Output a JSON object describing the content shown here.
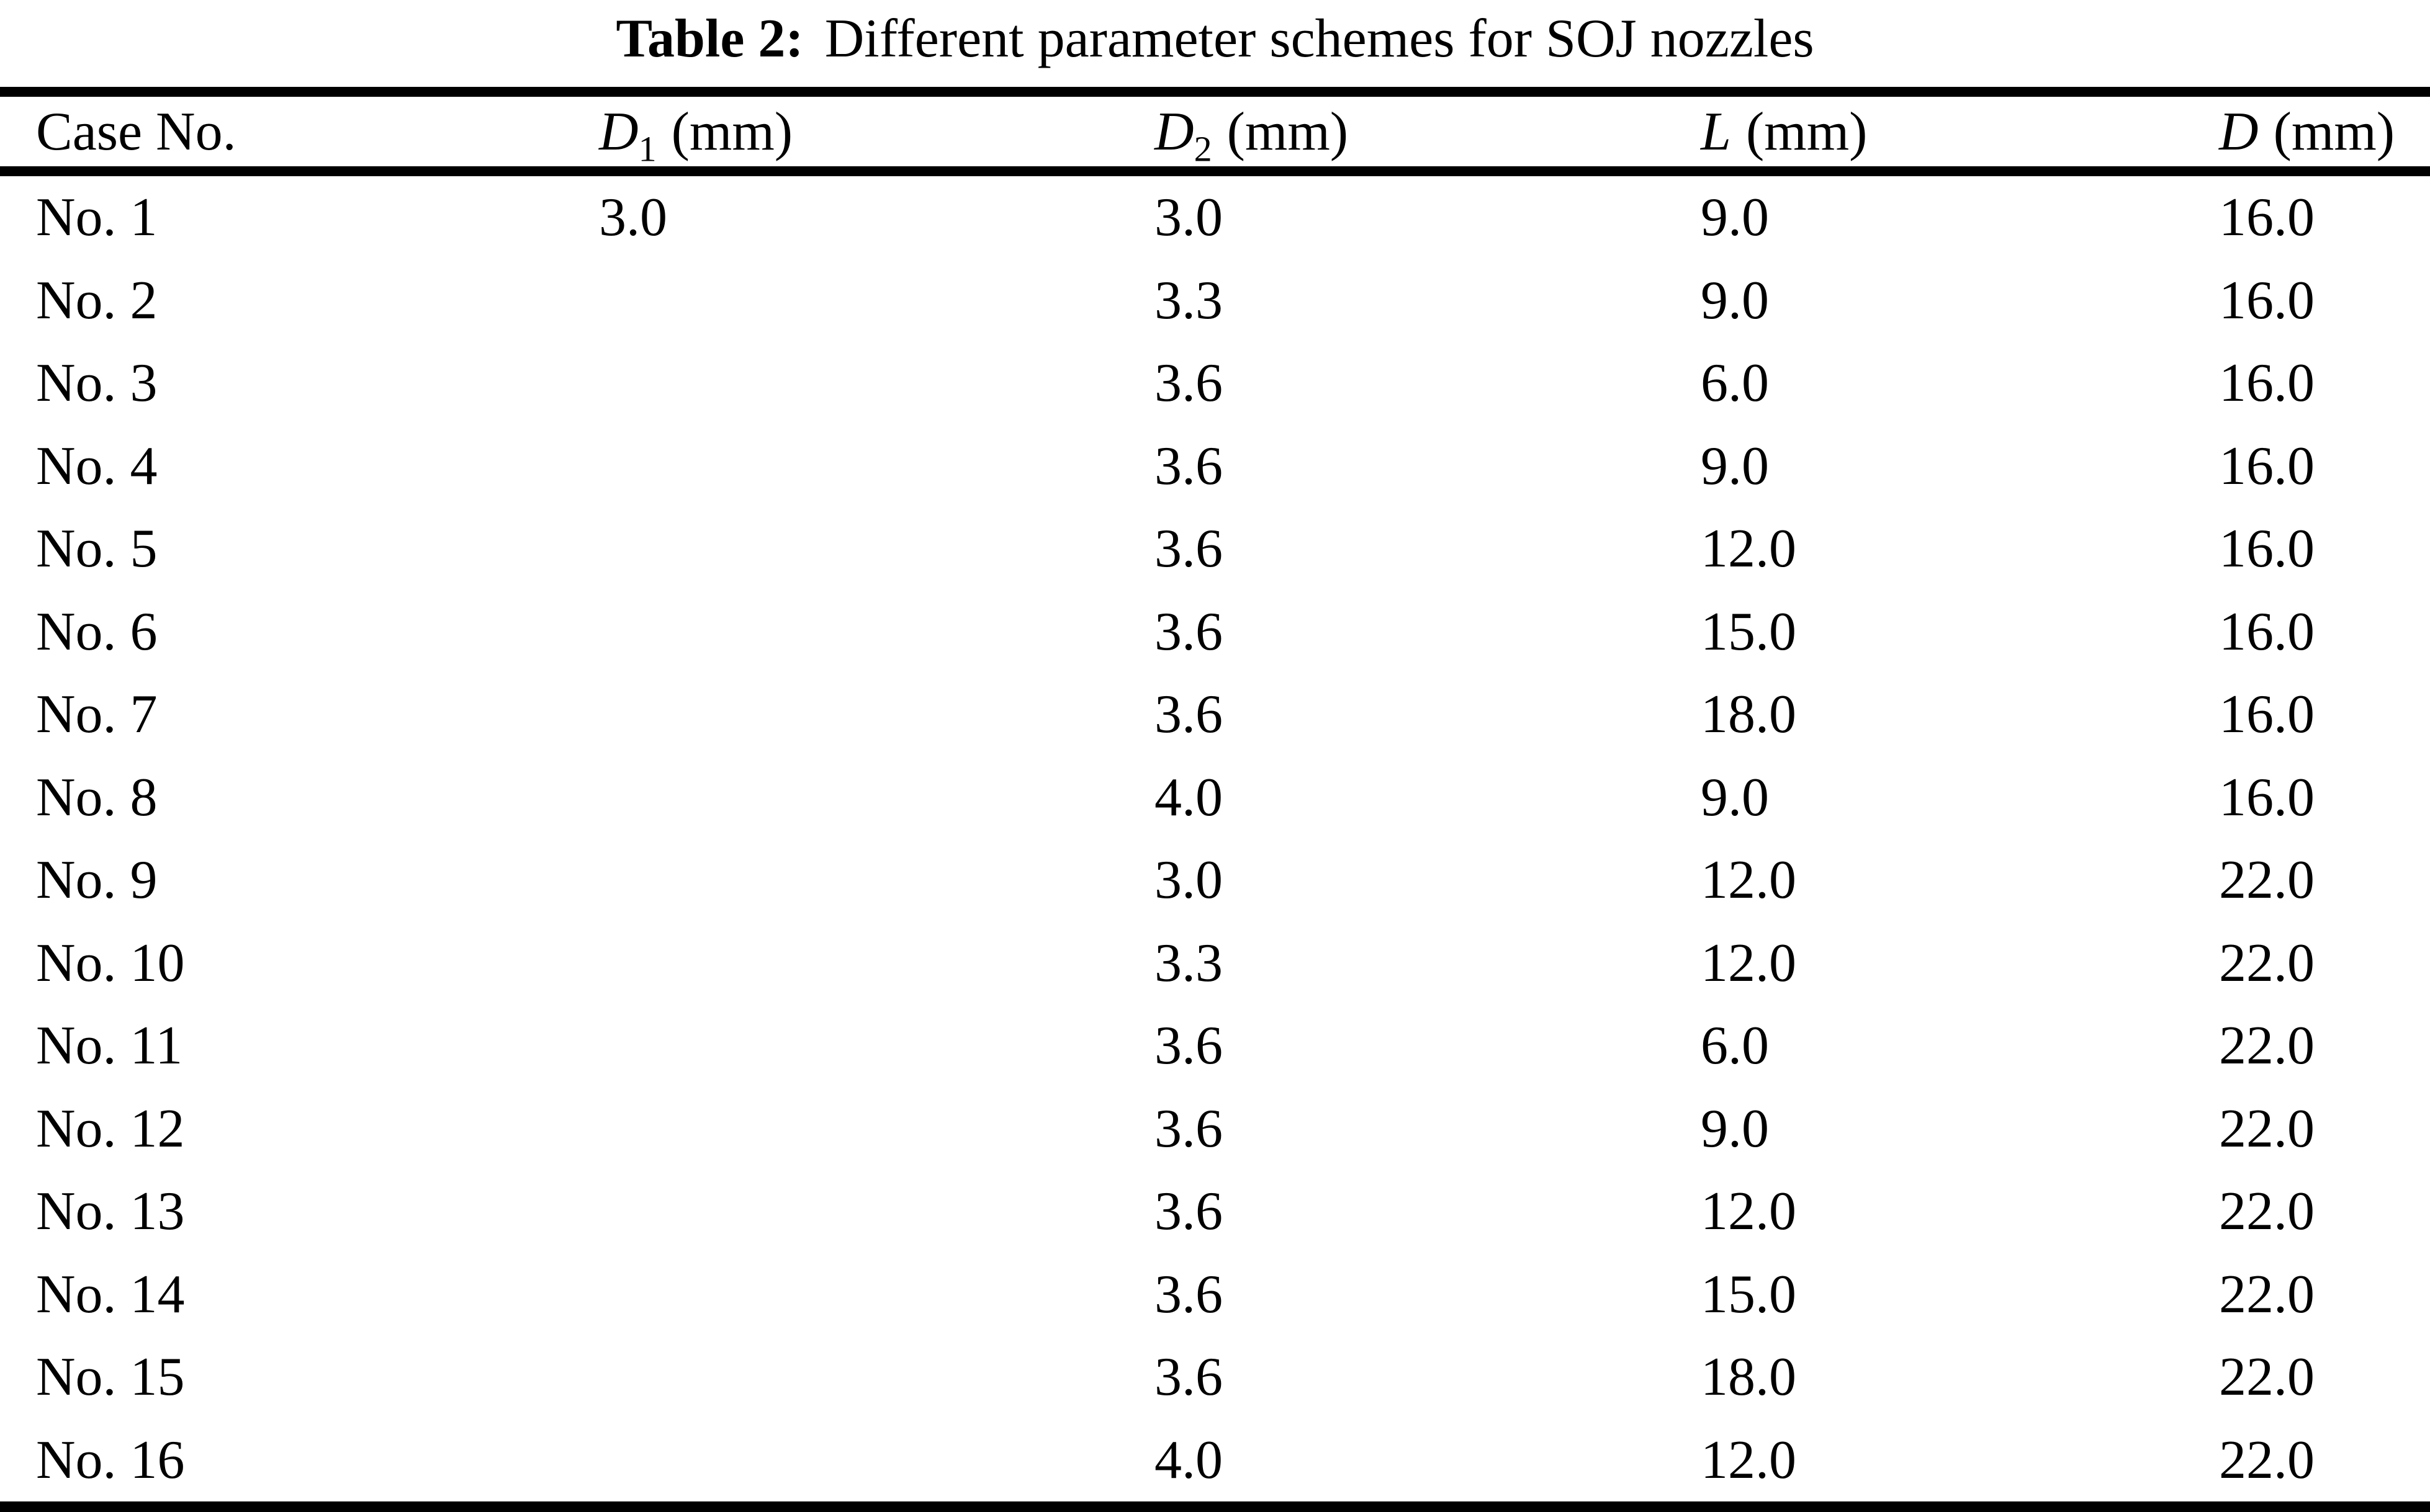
{
  "caption": {
    "label": "Table 2:",
    "text": "Different parameter schemes for SOJ nozzles"
  },
  "colors": {
    "text": "#000000",
    "background": "#ffffff",
    "rules": "#000000"
  },
  "table": {
    "columns": [
      {
        "key": "case",
        "label": "Case No.",
        "italic": false,
        "sub": "",
        "unit": ""
      },
      {
        "key": "d1",
        "label": "D",
        "italic": true,
        "sub": "1",
        "unit": "(mm)"
      },
      {
        "key": "d2",
        "label": "D",
        "italic": true,
        "sub": "2",
        "unit": "(mm)"
      },
      {
        "key": "l",
        "label": "L",
        "italic": true,
        "sub": "",
        "unit": "(mm)"
      },
      {
        "key": "d",
        "label": "D",
        "italic": true,
        "sub": "",
        "unit": "(mm)"
      }
    ],
    "rows": [
      {
        "case": "No. 1",
        "d1": "3.0",
        "d2": "3.0",
        "l": "9.0",
        "d": "16.0"
      },
      {
        "case": "No. 2",
        "d1": "",
        "d2": "3.3",
        "l": "9.0",
        "d": "16.0"
      },
      {
        "case": "No. 3",
        "d1": "",
        "d2": "3.6",
        "l": "6.0",
        "d": "16.0"
      },
      {
        "case": "No. 4",
        "d1": "",
        "d2": "3.6",
        "l": "9.0",
        "d": "16.0"
      },
      {
        "case": "No. 5",
        "d1": "",
        "d2": "3.6",
        "l": "12.0",
        "d": "16.0"
      },
      {
        "case": "No. 6",
        "d1": "",
        "d2": "3.6",
        "l": "15.0",
        "d": "16.0"
      },
      {
        "case": "No. 7",
        "d1": "",
        "d2": "3.6",
        "l": "18.0",
        "d": "16.0"
      },
      {
        "case": "No. 8",
        "d1": "",
        "d2": "4.0",
        "l": "9.0",
        "d": "16.0"
      },
      {
        "case": "No. 9",
        "d1": "",
        "d2": "3.0",
        "l": "12.0",
        "d": "22.0"
      },
      {
        "case": "No. 10",
        "d1": "",
        "d2": "3.3",
        "l": "12.0",
        "d": "22.0"
      },
      {
        "case": "No. 11",
        "d1": "",
        "d2": "3.6",
        "l": "6.0",
        "d": "22.0"
      },
      {
        "case": "No. 12",
        "d1": "",
        "d2": "3.6",
        "l": "9.0",
        "d": "22.0"
      },
      {
        "case": "No. 13",
        "d1": "",
        "d2": "3.6",
        "l": "12.0",
        "d": "22.0"
      },
      {
        "case": "No. 14",
        "d1": "",
        "d2": "3.6",
        "l": "15.0",
        "d": "22.0"
      },
      {
        "case": "No. 15",
        "d1": "",
        "d2": "3.6",
        "l": "18.0",
        "d": "22.0"
      },
      {
        "case": "No. 16",
        "d1": "",
        "d2": "4.0",
        "l": "12.0",
        "d": "22.0"
      }
    ]
  }
}
